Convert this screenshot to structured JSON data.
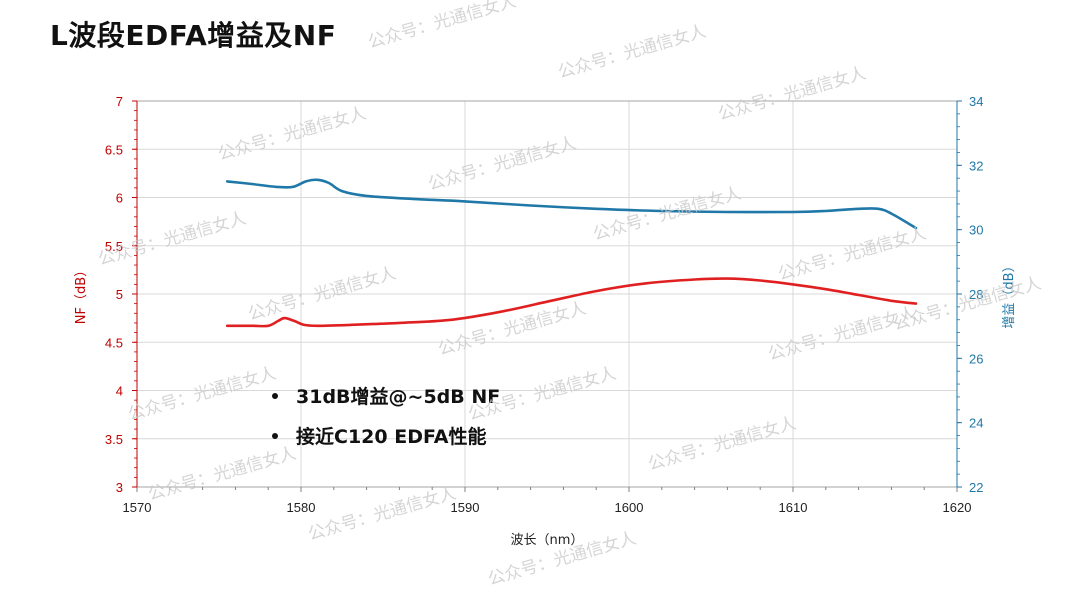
{
  "title": "L波段EDFA增益及NF",
  "chart_data": {
    "type": "line",
    "xlabel": "波长（nm）",
    "ylabel_left": "NF（dB）",
    "ylabel_right": "增益（dB）",
    "xlim": [
      1570,
      1620
    ],
    "ylim_left": [
      3,
      7
    ],
    "ylim_right": [
      22,
      34
    ],
    "x_ticks": [
      "1570",
      "1580",
      "1590",
      "1600",
      "1610",
      "1620"
    ],
    "y_left_ticks": [
      "3",
      "3.5",
      "4",
      "4.5",
      "5",
      "5.5",
      "6",
      "6.5",
      "7"
    ],
    "y_right_ticks": [
      "22",
      "24",
      "26",
      "28",
      "30",
      "32",
      "34"
    ],
    "grid": true,
    "series": [
      {
        "axis": "left",
        "color": "#e02020",
        "x": [
          1575.5,
          1577,
          1578,
          1578.6,
          1579,
          1579.6,
          1580.2,
          1581,
          1583,
          1586,
          1589,
          1592,
          1595,
          1598,
          1601,
          1604,
          1606,
          1608,
          1610,
          1612,
          1614,
          1616,
          1617.5
        ],
        "y": [
          4.67,
          4.67,
          4.67,
          4.72,
          4.75,
          4.72,
          4.68,
          4.67,
          4.68,
          4.7,
          4.73,
          4.81,
          4.92,
          5.03,
          5.11,
          5.15,
          5.16,
          5.14,
          5.1,
          5.05,
          4.99,
          4.93,
          4.9
        ]
      },
      {
        "axis": "right",
        "color": "#1f78a8",
        "x": [
          1575.5,
          1577,
          1578.5,
          1579.5,
          1580.3,
          1581,
          1581.7,
          1582.5,
          1584,
          1587,
          1590,
          1594,
          1598,
          1602,
          1606,
          1610,
          1612,
          1614,
          1615.2,
          1616,
          1617.5
        ],
        "y": [
          31.5,
          31.42,
          31.33,
          31.33,
          31.5,
          31.55,
          31.45,
          31.2,
          31.05,
          30.95,
          30.88,
          30.75,
          30.65,
          30.58,
          30.55,
          30.55,
          30.58,
          30.65,
          30.65,
          30.5,
          30.05
        ]
      }
    ]
  },
  "bullets": [
    "31dB增益@~5dB NF",
    "接近C120 EDFA性能"
  ],
  "watermark": "公众号：光通信女人",
  "colors": {
    "nf": "#e02020",
    "gain": "#1f78a8",
    "left_axis": "#c00000",
    "right_axis": "#1f78a8",
    "grid": "#d9d9d9"
  }
}
